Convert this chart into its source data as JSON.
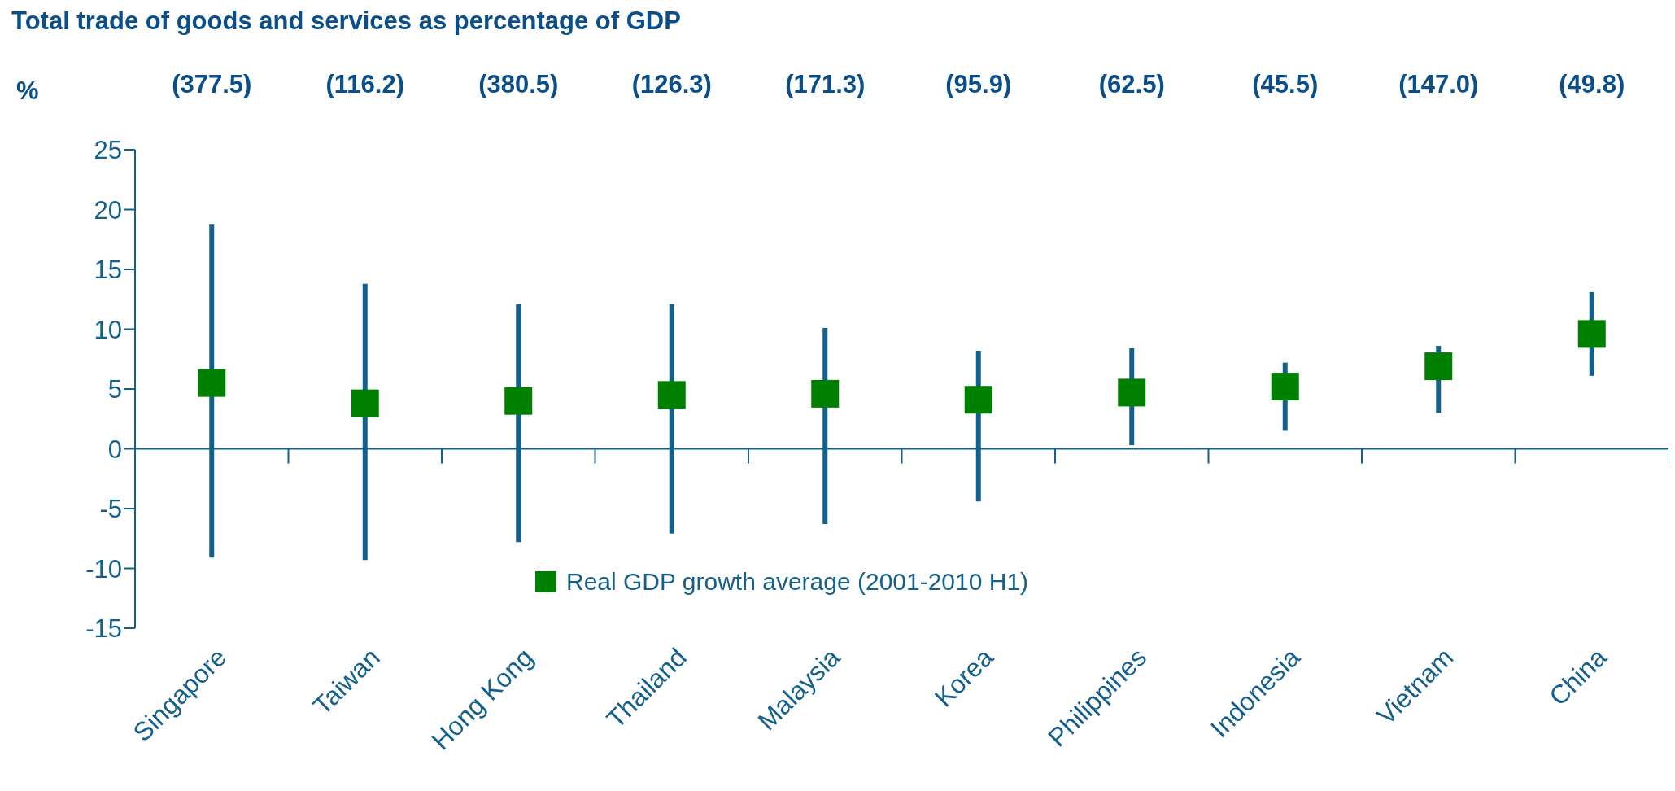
{
  "chart_data": {
    "type": "scatter",
    "title": "Total trade of goods and services as percentage of GDP",
    "ylabel": "%",
    "categories": [
      "Singapore",
      "Taiwan",
      "Hong Kong",
      "Thailand",
      "Malaysia",
      "Korea",
      "Philippines",
      "Indonesia",
      "Vietnam",
      "China"
    ],
    "series": [
      {
        "name": "Real GDP growth average (2001-2010 H1)",
        "color": "#008000",
        "values": [
          5.5,
          3.8,
          4.0,
          4.5,
          4.6,
          4.1,
          4.7,
          5.2,
          6.9,
          9.6
        ],
        "errors": [
          [
            -9.1,
            18.8
          ],
          [
            -9.3,
            13.8
          ],
          [
            -7.8,
            12.1
          ],
          [
            -7.1,
            12.1
          ],
          [
            -6.3,
            10.1
          ],
          [
            -4.4,
            8.2
          ],
          [
            0.3,
            8.4
          ],
          [
            1.5,
            7.2
          ],
          [
            3.0,
            8.6
          ],
          [
            6.1,
            13.1
          ]
        ]
      }
    ],
    "annotations": [
      "(377.5)",
      "(116.2)",
      "(380.5)",
      "(126.3)",
      "(171.3)",
      "(95.9)",
      "(62.5)",
      "(45.5)",
      "(147.0)",
      "(49.8)"
    ],
    "ylim": [
      -15,
      25
    ],
    "yticks": [
      -15,
      -10,
      -5,
      0,
      5,
      10,
      15,
      20,
      25
    ],
    "ref_lines": [
      {
        "axis": "y",
        "value": 0,
        "color": "#14608c"
      }
    ],
    "marker": "square",
    "legend": "bottom",
    "grid": false
  }
}
